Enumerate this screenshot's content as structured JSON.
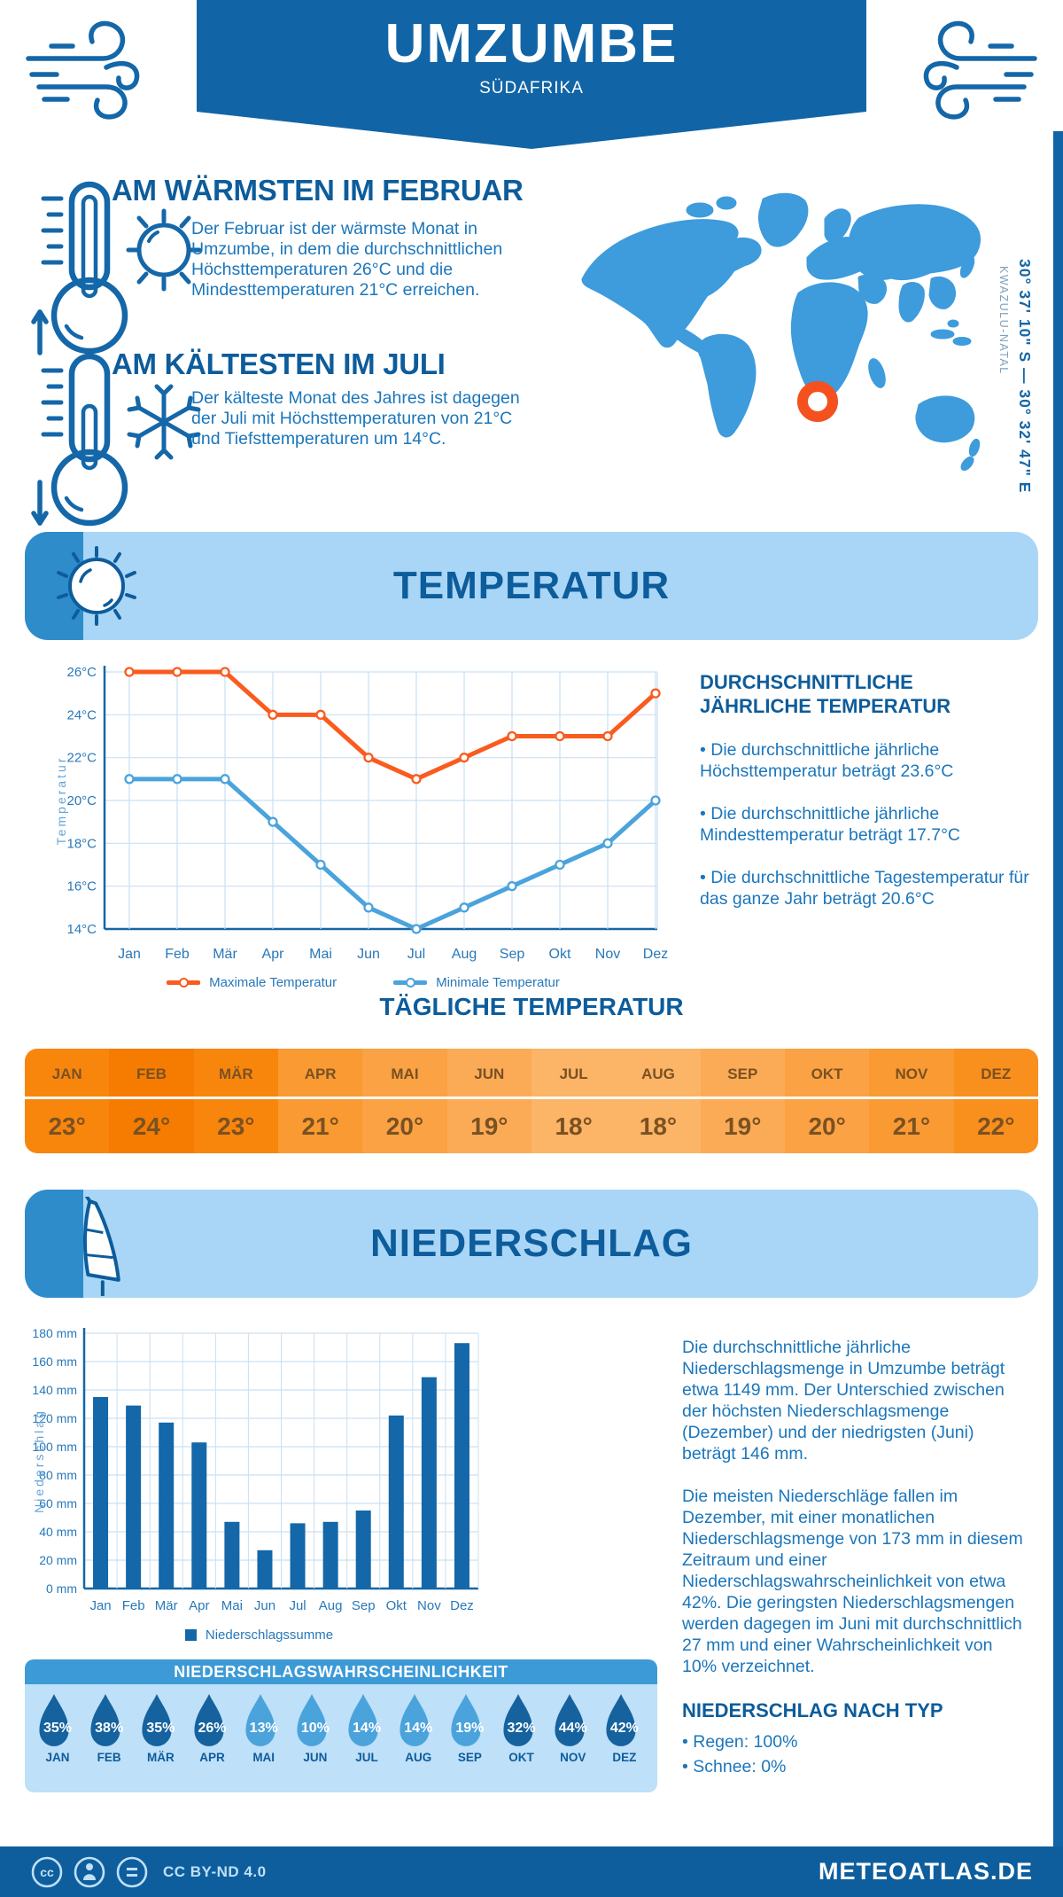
{
  "header": {
    "title": "UMZUMBE",
    "subtitle": "SÜDAFRIKA"
  },
  "warmest": {
    "heading": "AM WÄRMSTEN IM FEBRUAR",
    "text": "Der Februar ist der wärmste Monat in Umzumbe, in dem die durchschnittlichen Höchsttemperaturen 26°C und die Mindesttemperaturen 21°C erreichen."
  },
  "coldest": {
    "heading": "AM KÄLTESTEN IM JULI",
    "text": "Der kälteste Monat des Jahres ist dagegen der Juli mit Höchsttemperaturen von 21°C und Tiefsttemperaturen um 14°C."
  },
  "map": {
    "coordinates": "30° 37' 10\" S — 30° 32' 47\" E",
    "region": "KWAZULU-NATAL"
  },
  "sections": {
    "temperature": "TEMPERATUR",
    "precipitation": "NIEDERSCHLAG"
  },
  "annual": {
    "heading": "DURCHSCHNITTLICHE JÄHRLICHE TEMPERATUR",
    "bullets": [
      "• Die durchschnittliche jährliche Höchsttemperatur beträgt 23.6°C",
      "• Die durchschnittliche jährliche Mindesttemperatur beträgt 17.7°C",
      "• Die durchschnittliche Tagestemperatur für das ganze Jahr beträgt 20.6°C"
    ]
  },
  "daily": {
    "heading": "TÄGLICHE TEMPERATUR",
    "months": [
      "JAN",
      "FEB",
      "MÄR",
      "APR",
      "MAI",
      "JUN",
      "JUL",
      "AUG",
      "SEP",
      "OKT",
      "NOV",
      "DEZ"
    ],
    "values": [
      23,
      24,
      23,
      21,
      20,
      19,
      18,
      18,
      19,
      20,
      21,
      22
    ],
    "unit": "°"
  },
  "precipitation_text": {
    "p1": "Die durchschnittliche jährliche Niederschlagsmenge in Umzumbe beträgt etwa 1149 mm. Der Unterschied zwischen der höchsten Niederschlagsmenge (Dezember) und der niedrigsten (Juni) beträgt 146 mm.",
    "p2": "Die meisten Niederschläge fallen im Dezember, mit einer monatlichen Niederschlagsmenge von 173 mm in diesem Zeitraum und einer Niederschlagswahrscheinlichkeit von etwa 42%. Die geringsten Niederschlagsmengen werden dagegen im Juni mit durchschnittlich 27 mm und einer Wahrscheinlichkeit von 10% verzeichnet.",
    "type_heading": "NIEDERSCHLAG NACH TYP",
    "types": [
      "• Regen: 100%",
      "• Schnee: 0%"
    ]
  },
  "probability": {
    "heading": "NIEDERSCHLAGSWAHRSCHEINLICHKEIT",
    "months": [
      "JAN",
      "FEB",
      "MÄR",
      "APR",
      "MAI",
      "JUN",
      "JUL",
      "AUG",
      "SEP",
      "OKT",
      "NOV",
      "DEZ"
    ],
    "values": [
      35,
      38,
      35,
      26,
      13,
      10,
      14,
      14,
      19,
      32,
      44,
      42
    ]
  },
  "footer": {
    "license": "CC BY-ND 4.0",
    "site": "METEOATLAS.DE"
  },
  "colors": {
    "primary_blue": "#1165A6",
    "heading_blue": "#0D5C9B",
    "text_blue": "#1B76BB",
    "light_banner": "#A9D6F6",
    "map_blue": "#3E9BDC",
    "marker_orange": "#F4511E",
    "max_line": "#FA5B1E",
    "min_line": "#4BA3DC",
    "bar_blue": "#1467A8",
    "drop_dark": "#15629E",
    "drop_light": "#4BA3DC"
  },
  "chart_data": [
    {
      "type": "line",
      "title": "Temperatur",
      "x": [
        "Jan",
        "Feb",
        "Mär",
        "Apr",
        "Mai",
        "Jun",
        "Jul",
        "Aug",
        "Sep",
        "Okt",
        "Nov",
        "Dez"
      ],
      "series": [
        {
          "name": "Maximale Temperatur",
          "color": "#FA5B1E",
          "values": [
            26,
            26,
            26,
            24,
            24,
            22,
            21,
            22,
            23,
            23,
            23,
            25
          ]
        },
        {
          "name": "Minimale Temperatur",
          "color": "#4BA3DC",
          "values": [
            21,
            21,
            21,
            19,
            17,
            15,
            14,
            15,
            16,
            17,
            18,
            20
          ]
        }
      ],
      "ylabel": "Temperatur",
      "ylim": [
        14,
        26
      ],
      "ytick_step": 2,
      "yunit": "°C",
      "grid": true,
      "legend_position": "bottom"
    },
    {
      "type": "bar",
      "title": "Niederschlag",
      "categories": [
        "Jan",
        "Feb",
        "Mär",
        "Apr",
        "Mai",
        "Jun",
        "Jul",
        "Aug",
        "Sep",
        "Okt",
        "Nov",
        "Dez"
      ],
      "series": [
        {
          "name": "Niederschlagssumme",
          "color": "#1467A8",
          "values": [
            135,
            129,
            117,
            103,
            47,
            27,
            46,
            47,
            55,
            122,
            149,
            173
          ]
        }
      ],
      "ylabel": "Niederschlag",
      "ylim": [
        0,
        180
      ],
      "ytick_step": 20,
      "yunit": " mm",
      "grid": true,
      "legend_position": "bottom"
    }
  ]
}
